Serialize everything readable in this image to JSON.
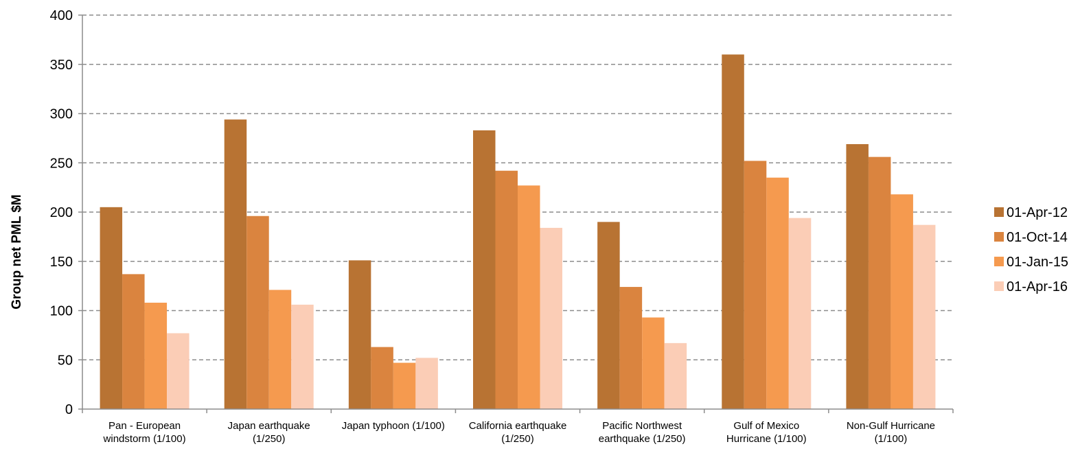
{
  "chart_data": {
    "type": "bar",
    "title": "",
    "xlabel": "",
    "ylabel": "Group net PML $M",
    "ylim": [
      0,
      400
    ],
    "yticks": [
      0,
      50,
      100,
      150,
      200,
      250,
      300,
      350,
      400
    ],
    "grid": "horizontal dashed",
    "legend_position": "right",
    "categories": [
      [
        "Pan - European",
        "windstorm (1/100)"
      ],
      [
        "Japan earthquake",
        "(1/250)"
      ],
      [
        "Japan typhoon (1/100)"
      ],
      [
        "California earthquake",
        "(1/250)"
      ],
      [
        "Pacific Northwest",
        "earthquake (1/250)"
      ],
      [
        "Gulf of Mexico",
        "Hurricane (1/100)"
      ],
      [
        "Non-Gulf Hurricane",
        "(1/100)"
      ]
    ],
    "series": [
      {
        "name": "01-Apr-12",
        "color": "#B87333",
        "values": [
          205,
          294,
          151,
          283,
          190,
          360,
          269
        ]
      },
      {
        "name": "01-Oct-14",
        "color": "#DA843F",
        "values": [
          137,
          196,
          63,
          242,
          124,
          252,
          256
        ]
      },
      {
        "name": "01-Jan-15",
        "color": "#F59A4F",
        "values": [
          108,
          121,
          47,
          227,
          93,
          235,
          218
        ]
      },
      {
        "name": "01-Apr-16",
        "color": "#FBCDB6",
        "values": [
          77,
          106,
          52,
          184,
          67,
          194,
          187
        ]
      }
    ]
  }
}
